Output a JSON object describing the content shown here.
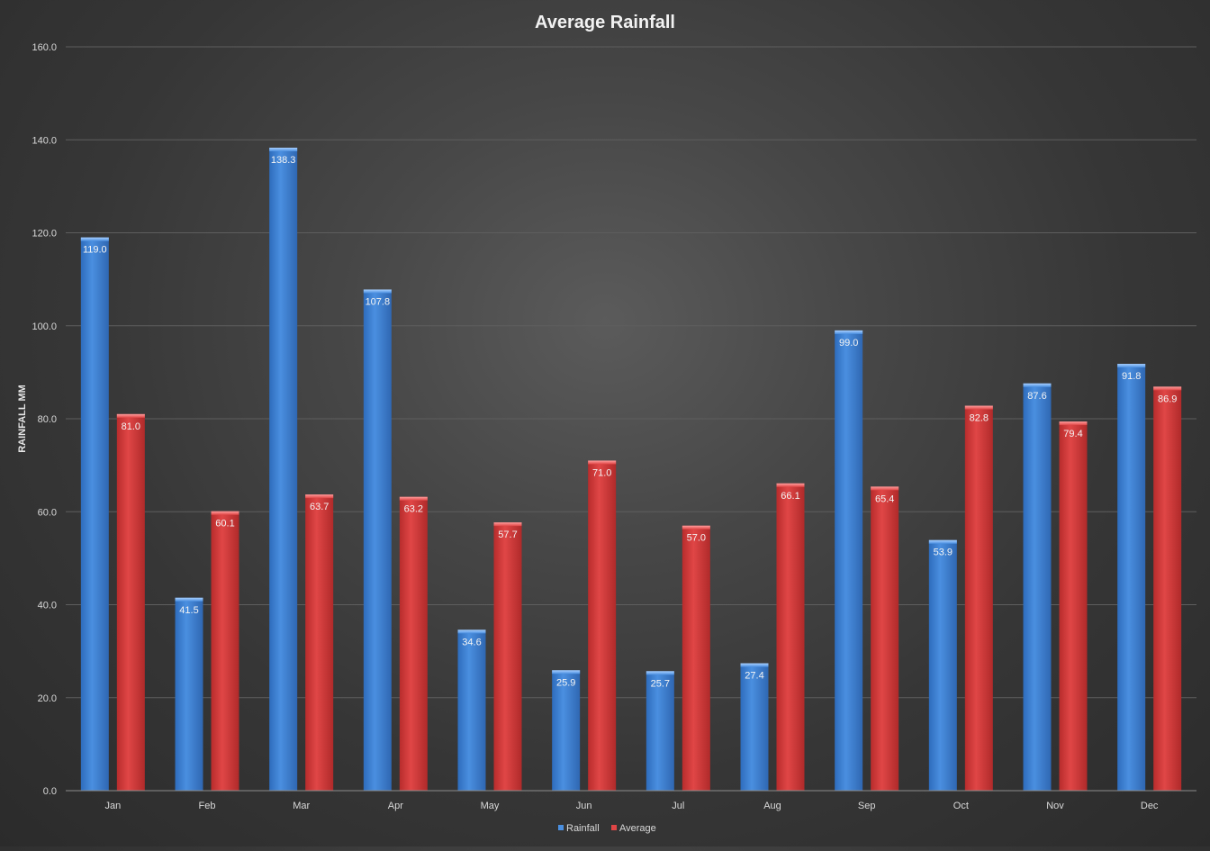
{
  "chart_data": {
    "type": "bar",
    "title": "Average Rainfall",
    "xlabel": "",
    "ylabel": "RAINFALL MM",
    "categories": [
      "Jan",
      "Feb",
      "Mar",
      "Apr",
      "May",
      "Jun",
      "Jul",
      "Aug",
      "Sep",
      "Oct",
      "Nov",
      "Dec"
    ],
    "series": [
      {
        "name": "Rainfall",
        "color": "#3a7fd5",
        "values": [
          119.0,
          41.5,
          138.3,
          107.8,
          34.6,
          25.9,
          25.7,
          27.4,
          99.0,
          53.9,
          87.6,
          91.8
        ]
      },
      {
        "name": "Average",
        "color": "#d63a3a",
        "values": [
          81.0,
          60.1,
          63.7,
          63.2,
          57.7,
          71.0,
          57.0,
          66.1,
          65.4,
          82.8,
          79.4,
          86.9
        ]
      }
    ],
    "ylim": [
      0,
      160
    ],
    "yticks": [
      "0.0",
      "20.0",
      "40.0",
      "60.0",
      "80.0",
      "100.0",
      "120.0",
      "140.0",
      "160.0"
    ],
    "grid": true,
    "legend_position": "bottom",
    "data_labels": true
  }
}
